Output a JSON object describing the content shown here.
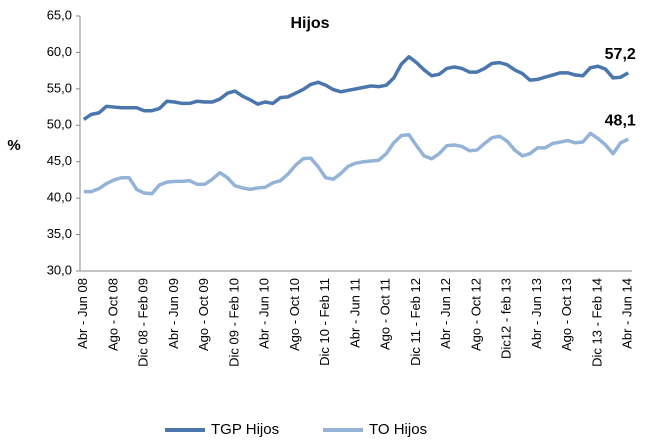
{
  "chart_data": {
    "type": "line",
    "title": "Hijos",
    "y_label": "%",
    "categories": [
      "Abr - Jun 08",
      null,
      null,
      null,
      "Ago - Oct 08",
      null,
      null,
      null,
      "Dic 08 - Feb 09",
      null,
      null,
      null,
      "Abr - Jun 09",
      null,
      null,
      null,
      "Ago - Oct 09",
      null,
      null,
      null,
      "Dic 09 - Feb 10",
      null,
      null,
      null,
      "Abr - Jun 10",
      null,
      null,
      null,
      "Ago - Oct 10",
      null,
      null,
      null,
      "Dic 10 - Feb 11",
      null,
      null,
      null,
      "Abr - Jun 11",
      null,
      null,
      null,
      "Ago - Oct 11",
      null,
      null,
      null,
      "Dic 11 - Feb 12",
      null,
      null,
      null,
      "Abr - Jun 12",
      null,
      null,
      null,
      "Ago - Oct 12",
      null,
      null,
      null,
      "Dic12 - feb 13",
      null,
      null,
      null,
      "Abr - Jun 13",
      null,
      null,
      null,
      "Ago - Oct 13",
      null,
      null,
      null,
      "Dic 13 - Feb 14",
      null,
      null,
      null,
      "Abr - Jun 14"
    ],
    "series": [
      {
        "name": "TGP Hijos",
        "color": "#4a76ad",
        "values": [
          50.8,
          51.5,
          51.7,
          52.6,
          52.5,
          52.4,
          52.4,
          52.4,
          52.0,
          52.0,
          52.3,
          53.3,
          53.2,
          53.0,
          53.0,
          53.3,
          53.2,
          53.2,
          53.6,
          54.4,
          54.7,
          54.0,
          53.5,
          52.9,
          53.2,
          53.0,
          53.8,
          53.9,
          54.4,
          54.9,
          55.6,
          55.9,
          55.5,
          54.9,
          54.6,
          54.8,
          55.0,
          55.2,
          55.4,
          55.3,
          55.5,
          56.5,
          58.4,
          59.4,
          58.6,
          57.6,
          56.8,
          57.0,
          57.8,
          58.0,
          57.8,
          57.3,
          57.3,
          57.8,
          58.5,
          58.6,
          58.3,
          57.6,
          57.1,
          56.2,
          56.3,
          56.6,
          56.9,
          57.2,
          57.2,
          56.9,
          56.8,
          57.9,
          58.1,
          57.7,
          56.5,
          56.6,
          57.2
        ],
        "value_labels": [
          null,
          null,
          null,
          null,
          null,
          null,
          null,
          null,
          null,
          null,
          null,
          null,
          null,
          null,
          null,
          null,
          null,
          null,
          null,
          null,
          null,
          null,
          null,
          null,
          null,
          null,
          null,
          null,
          null,
          null,
          null,
          null,
          null,
          null,
          null,
          null,
          null,
          null,
          null,
          null,
          null,
          null,
          null,
          null,
          null,
          null,
          null,
          null,
          null,
          null,
          null,
          null,
          null,
          null,
          null,
          null,
          null,
          null,
          null,
          null,
          null,
          null,
          null,
          null,
          null,
          null,
          null,
          null,
          null,
          null,
          null,
          null,
          "57,2"
        ]
      },
      {
        "name": "TO Hijos",
        "color": "#95b3d7",
        "values": [
          40.9,
          40.9,
          41.3,
          42.0,
          42.5,
          42.8,
          42.8,
          41.2,
          40.7,
          40.6,
          41.8,
          42.2,
          42.3,
          42.3,
          42.4,
          41.9,
          41.9,
          42.6,
          43.5,
          42.8,
          41.7,
          41.4,
          41.2,
          41.4,
          41.5,
          42.1,
          42.4,
          43.3,
          44.5,
          45.4,
          45.5,
          44.3,
          42.8,
          42.6,
          43.4,
          44.4,
          44.8,
          45.0,
          45.1,
          45.2,
          46.1,
          47.6,
          48.6,
          48.7,
          47.2,
          45.8,
          45.4,
          46.1,
          47.2,
          47.3,
          47.1,
          46.5,
          46.6,
          47.5,
          48.3,
          48.5,
          47.8,
          46.6,
          45.8,
          46.1,
          46.9,
          46.9,
          47.5,
          47.7,
          47.9,
          47.6,
          47.7,
          48.9,
          48.2,
          47.3,
          46.1,
          47.6,
          48.1
        ],
        "value_labels": [
          null,
          null,
          null,
          null,
          null,
          null,
          null,
          null,
          null,
          null,
          null,
          null,
          null,
          null,
          null,
          null,
          null,
          null,
          null,
          null,
          null,
          null,
          null,
          null,
          null,
          null,
          null,
          null,
          null,
          null,
          null,
          null,
          null,
          null,
          null,
          null,
          null,
          null,
          null,
          null,
          null,
          null,
          null,
          null,
          null,
          null,
          null,
          null,
          null,
          null,
          null,
          null,
          null,
          null,
          null,
          null,
          null,
          null,
          null,
          null,
          null,
          null,
          null,
          null,
          null,
          null,
          null,
          null,
          null,
          null,
          null,
          null,
          "48,1"
        ]
      }
    ],
    "ylim": [
      30,
      65
    ],
    "yticks": [
      {
        "value": 30,
        "label": "30,0"
      },
      {
        "value": 35,
        "label": "35,0"
      },
      {
        "value": 40,
        "label": "40,0"
      },
      {
        "value": 45,
        "label": "45,0"
      },
      {
        "value": 50,
        "label": "50,0"
      },
      {
        "value": 55,
        "label": "55,0"
      },
      {
        "value": 60,
        "label": "60,0"
      },
      {
        "value": 65,
        "label": "65,0"
      }
    ],
    "grid": false,
    "legend": "bottom"
  }
}
